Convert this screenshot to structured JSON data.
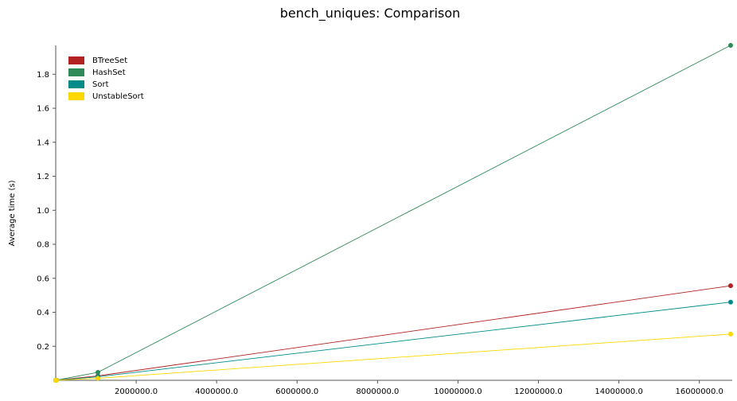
{
  "chart_data": {
    "type": "line",
    "title": "bench_uniques: Comparison",
    "xlabel": "",
    "ylabel": "Average time (s)",
    "xlim": [
      0,
      16777216
    ],
    "ylim": [
      0,
      1.97
    ],
    "x_ticks": [
      "2000000.0",
      "4000000.0",
      "6000000.0",
      "8000000.0",
      "10000000.0",
      "12000000.0",
      "14000000.0",
      "16000000.0"
    ],
    "y_ticks": [
      "0.2",
      "0.4",
      "0.6",
      "0.8",
      "1.0",
      "1.2",
      "1.4",
      "1.6",
      "1.8"
    ],
    "legend_position": "top-left",
    "grid": false,
    "x": [
      64,
      1024,
      16384,
      1048576,
      16777216
    ],
    "series": [
      {
        "name": "BTreeSet",
        "color": "#b22222",
        "values": [
          1e-05,
          5e-05,
          0.0006,
          0.026,
          0.556
        ]
      },
      {
        "name": "HashSet",
        "color": "#2e8b57",
        "values": [
          1e-05,
          6e-05,
          0.0009,
          0.047,
          1.97
        ]
      },
      {
        "name": "Sort",
        "color": "#008b8b",
        "values": [
          1e-05,
          4e-05,
          0.0005,
          0.021,
          0.46
        ]
      },
      {
        "name": "UnstableSort",
        "color": "#ffd700",
        "values": [
          1e-05,
          3e-05,
          0.0003,
          0.012,
          0.272
        ]
      }
    ]
  }
}
